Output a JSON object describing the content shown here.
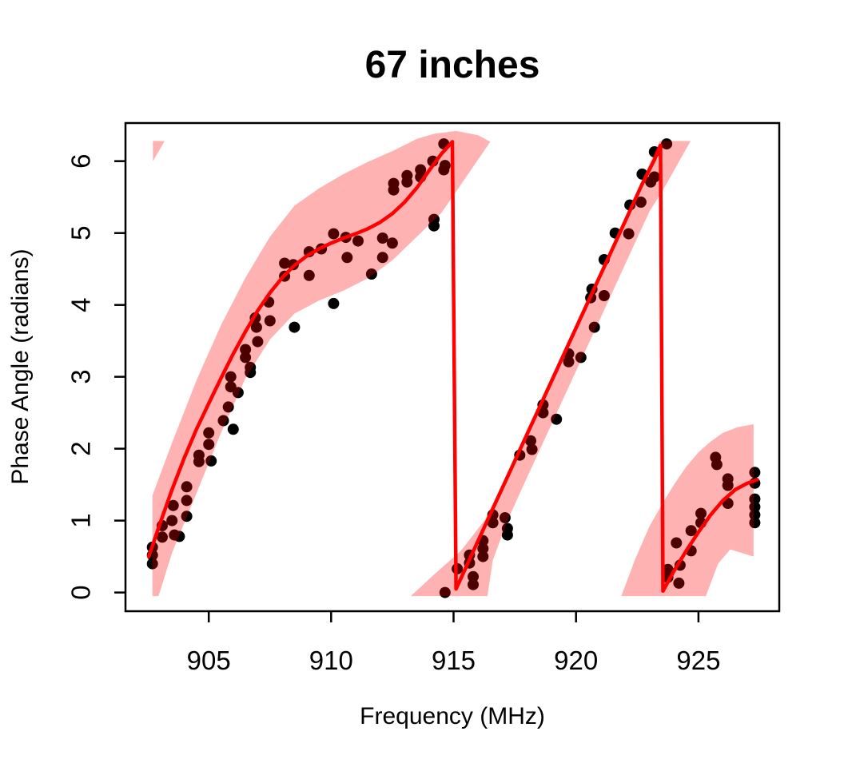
{
  "title": "67 inches",
  "chart_data": {
    "type": "scatter",
    "title": "67 inches",
    "xlabel": "Frequency (MHz)",
    "ylabel": "Phase Angle (radians)",
    "xlim": [
      901.6,
      928.3
    ],
    "ylim": [
      -0.26,
      6.53
    ],
    "xticks": [
      905,
      910,
      915,
      920,
      925
    ],
    "yticks": [
      0,
      1,
      2,
      3,
      4,
      5,
      6
    ],
    "grid": false,
    "legend": "none",
    "colors": {
      "point": "#000000",
      "fit_line": "#FF0000",
      "band": "#FF0000",
      "band_opacity": 0.3,
      "background": "#FFFFFF",
      "axis": "#000000"
    },
    "points": [
      [
        902.7,
        0.63
      ],
      [
        902.7,
        0.52
      ],
      [
        902.7,
        0.4
      ],
      [
        903.1,
        0.93
      ],
      [
        903.1,
        0.77
      ],
      [
        903.55,
        1.21
      ],
      [
        903.5,
        1.0
      ],
      [
        903.6,
        0.8
      ],
      [
        903.8,
        0.78
      ],
      [
        904.1,
        1.47
      ],
      [
        904.1,
        1.28
      ],
      [
        904.1,
        1.06
      ],
      [
        904.6,
        1.91
      ],
      [
        904.6,
        1.82
      ],
      [
        905.0,
        2.22
      ],
      [
        905.0,
        2.06
      ],
      [
        905.1,
        1.83
      ],
      [
        905.6,
        2.39
      ],
      [
        905.8,
        2.58
      ],
      [
        906.0,
        2.27
      ],
      [
        905.9,
        3.0
      ],
      [
        905.9,
        2.86
      ],
      [
        906.2,
        2.78
      ],
      [
        906.5,
        3.38
      ],
      [
        906.5,
        3.27
      ],
      [
        906.7,
        3.13
      ],
      [
        906.7,
        3.06
      ],
      [
        906.9,
        3.82
      ],
      [
        906.95,
        3.69
      ],
      [
        907.0,
        3.49
      ],
      [
        907.5,
        3.78
      ],
      [
        907.45,
        4.04
      ],
      [
        908.1,
        4.58
      ],
      [
        908.1,
        4.4
      ],
      [
        908.45,
        4.56
      ],
      [
        908.5,
        3.69
      ],
      [
        909.1,
        4.74
      ],
      [
        909.1,
        4.41
      ],
      [
        909.6,
        4.78
      ],
      [
        910.1,
        4.99
      ],
      [
        910.1,
        4.02
      ],
      [
        910.6,
        4.94
      ],
      [
        910.65,
        4.66
      ],
      [
        911.1,
        4.89
      ],
      [
        911.65,
        4.43
      ],
      [
        912.1,
        4.93
      ],
      [
        912.1,
        4.66
      ],
      [
        912.5,
        4.86
      ],
      [
        912.55,
        5.69
      ],
      [
        912.55,
        5.6
      ],
      [
        913.1,
        5.8
      ],
      [
        913.1,
        5.71
      ],
      [
        913.65,
        5.88
      ],
      [
        913.65,
        5.78
      ],
      [
        914.15,
        6.0
      ],
      [
        914.2,
        5.19
      ],
      [
        914.2,
        5.1
      ],
      [
        914.6,
        6.24
      ],
      [
        914.65,
        5.94
      ],
      [
        914.6,
        5.88
      ],
      [
        914.65,
        0.0
      ],
      [
        915.15,
        0.33
      ],
      [
        915.65,
        0.52
      ],
      [
        915.65,
        0.41
      ],
      [
        915.8,
        0.22
      ],
      [
        915.8,
        0.11
      ],
      [
        916.2,
        0.72
      ],
      [
        916.2,
        0.61
      ],
      [
        916.2,
        0.5
      ],
      [
        916.6,
        1.08
      ],
      [
        916.6,
        0.97
      ],
      [
        917.1,
        1.04
      ],
      [
        917.2,
        0.89
      ],
      [
        917.2,
        0.8
      ],
      [
        917.7,
        1.91
      ],
      [
        918.15,
        2.11
      ],
      [
        918.2,
        1.99
      ],
      [
        918.65,
        2.61
      ],
      [
        918.65,
        2.5
      ],
      [
        919.2,
        2.41
      ],
      [
        919.7,
        3.32
      ],
      [
        919.7,
        3.21
      ],
      [
        920.2,
        3.27
      ],
      [
        920.75,
        3.69
      ],
      [
        920.65,
        4.22
      ],
      [
        920.6,
        4.1
      ],
      [
        921.15,
        4.13
      ],
      [
        921.15,
        4.63
      ],
      [
        921.6,
        5.0
      ],
      [
        922.15,
        4.99
      ],
      [
        922.2,
        5.39
      ],
      [
        922.65,
        5.43
      ],
      [
        922.7,
        5.82
      ],
      [
        923.2,
        5.78
      ],
      [
        923.05,
        5.71
      ],
      [
        923.2,
        6.13
      ],
      [
        923.7,
        6.24
      ],
      [
        923.75,
        0.32
      ],
      [
        923.75,
        0.21
      ],
      [
        924.2,
        0.13
      ],
      [
        924.25,
        0.38
      ],
      [
        924.1,
        0.69
      ],
      [
        924.7,
        0.58
      ],
      [
        924.7,
        0.86
      ],
      [
        925.1,
        1.1
      ],
      [
        925.1,
        0.97
      ],
      [
        925.7,
        1.88
      ],
      [
        925.75,
        1.78
      ],
      [
        926.2,
        1.58
      ],
      [
        926.2,
        1.49
      ],
      [
        926.2,
        1.24
      ],
      [
        927.3,
        1.67
      ],
      [
        927.3,
        1.52
      ],
      [
        927.3,
        1.3
      ],
      [
        927.3,
        1.19
      ],
      [
        927.3,
        1.08
      ],
      [
        927.3,
        0.97
      ]
    ],
    "fit_line": [
      [
        902.55,
        0.5
      ],
      [
        903.0,
        0.95
      ],
      [
        903.5,
        1.43
      ],
      [
        904.0,
        1.87
      ],
      [
        904.5,
        2.27
      ],
      [
        905.0,
        2.63
      ],
      [
        905.5,
        2.98
      ],
      [
        906.0,
        3.32
      ],
      [
        906.5,
        3.63
      ],
      [
        907.0,
        3.92
      ],
      [
        907.5,
        4.17
      ],
      [
        908.0,
        4.38
      ],
      [
        908.5,
        4.55
      ],
      [
        909.0,
        4.68
      ],
      [
        909.5,
        4.78
      ],
      [
        910.0,
        4.86
      ],
      [
        910.5,
        4.93
      ],
      [
        911.0,
        4.99
      ],
      [
        911.5,
        5.06
      ],
      [
        912.0,
        5.15
      ],
      [
        912.5,
        5.27
      ],
      [
        913.0,
        5.43
      ],
      [
        913.5,
        5.63
      ],
      [
        914.0,
        5.87
      ],
      [
        914.5,
        6.1
      ],
      [
        914.95,
        6.27
      ],
      [
        915.1,
        0.05
      ],
      [
        915.6,
        0.42
      ],
      [
        916.0,
        0.72
      ],
      [
        917.0,
        1.46
      ],
      [
        918.0,
        2.2
      ],
      [
        919.0,
        2.94
      ],
      [
        920.0,
        3.68
      ],
      [
        921.0,
        4.42
      ],
      [
        922.0,
        5.16
      ],
      [
        922.7,
        5.68
      ],
      [
        923.2,
        6.02
      ],
      [
        923.45,
        6.22
      ],
      [
        923.55,
        0.02
      ],
      [
        924.0,
        0.3
      ],
      [
        924.5,
        0.58
      ],
      [
        925.0,
        0.84
      ],
      [
        925.5,
        1.08
      ],
      [
        926.0,
        1.28
      ],
      [
        926.5,
        1.43
      ],
      [
        927.0,
        1.52
      ],
      [
        927.4,
        1.57
      ]
    ],
    "band_polygons": [
      [
        [
          902.7,
          1.35
        ],
        [
          903.5,
          2.08
        ],
        [
          904.5,
          2.95
        ],
        [
          905.5,
          3.72
        ],
        [
          906.5,
          4.38
        ],
        [
          907.5,
          4.95
        ],
        [
          908.5,
          5.38
        ],
        [
          909.5,
          5.62
        ],
        [
          910.5,
          5.82
        ],
        [
          911.5,
          5.99
        ],
        [
          912.5,
          6.14
        ],
        [
          913.5,
          6.31
        ],
        [
          914.2,
          6.38
        ],
        [
          915.1,
          6.42
        ],
        [
          916.0,
          6.36
        ],
        [
          916.5,
          6.27
        ],
        [
          915.15,
          5.6
        ],
        [
          914.5,
          5.28
        ],
        [
          913.5,
          4.95
        ],
        [
          912.5,
          4.62
        ],
        [
          911.5,
          4.37
        ],
        [
          910.5,
          4.2
        ],
        [
          909.5,
          4.06
        ],
        [
          908.5,
          3.88
        ],
        [
          907.5,
          3.52
        ],
        [
          906.5,
          2.98
        ],
        [
          905.5,
          2.22
        ],
        [
          904.5,
          1.38
        ],
        [
          903.5,
          0.55
        ],
        [
          902.95,
          -0.05
        ],
        [
          902.7,
          -0.05
        ]
      ],
      [
        [
          902.72,
          6.28
        ],
        [
          903.2,
          6.28
        ],
        [
          902.72,
          6.0
        ]
      ],
      [
        [
          913.25,
          -0.05
        ],
        [
          914.3,
          0.28
        ],
        [
          915.3,
          0.58
        ],
        [
          916.3,
          1.02
        ],
        [
          917.0,
          1.52
        ],
        [
          918.0,
          2.26
        ],
        [
          919.0,
          3.0
        ],
        [
          920.0,
          3.74
        ],
        [
          921.0,
          4.48
        ],
        [
          922.0,
          5.22
        ],
        [
          923.0,
          5.96
        ],
        [
          923.42,
          6.28
        ],
        [
          924.68,
          6.28
        ],
        [
          923.52,
          5.58
        ],
        [
          923.0,
          5.3
        ],
        [
          922.0,
          4.56
        ],
        [
          921.0,
          3.82
        ],
        [
          920.0,
          3.08
        ],
        [
          919.0,
          2.34
        ],
        [
          918.0,
          1.6
        ],
        [
          917.2,
          1.0
        ],
        [
          916.6,
          0.45
        ],
        [
          916.38,
          -0.05
        ]
      ],
      [
        [
          921.85,
          -0.05
        ],
        [
          922.4,
          0.45
        ],
        [
          923.0,
          0.92
        ],
        [
          923.5,
          1.22
        ],
        [
          924.0,
          1.5
        ],
        [
          924.5,
          1.75
        ],
        [
          925.0,
          1.95
        ],
        [
          925.5,
          2.1
        ],
        [
          926.0,
          2.22
        ],
        [
          926.6,
          2.3
        ],
        [
          927.25,
          2.34
        ],
        [
          927.25,
          0.5
        ],
        [
          926.3,
          0.6
        ],
        [
          925.8,
          0.4
        ],
        [
          925.3,
          -0.05
        ]
      ]
    ]
  }
}
